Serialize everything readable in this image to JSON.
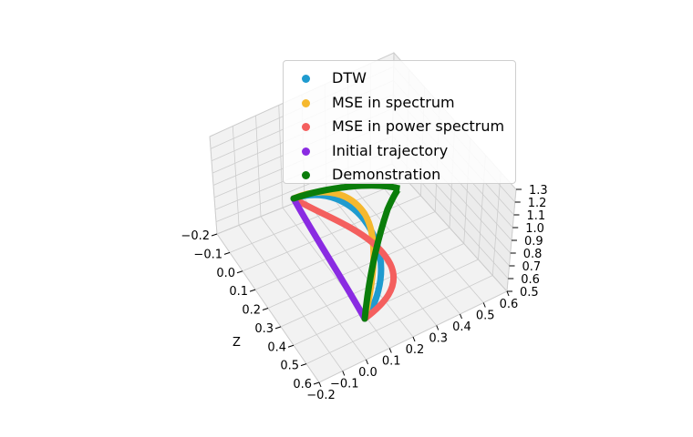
{
  "chart_data": {
    "type": "line3d",
    "title": "",
    "axes": {
      "x": {
        "label": "",
        "ticks": [
          "−0.2",
          "−0.1",
          "0.0",
          "0.1",
          "0.2",
          "0.3",
          "0.4",
          "0.5",
          "0.6"
        ],
        "range": [
          -0.2,
          0.6
        ]
      },
      "z": {
        "label": "Z",
        "ticks": [
          "−0.2",
          "−0.1",
          "0.0",
          "0.1",
          "0.2",
          "0.3",
          "0.4",
          "0.5",
          "0.6"
        ],
        "range": [
          -0.2,
          0.6
        ]
      },
      "y": {
        "label": "",
        "ticks": [
          "0.5",
          "0.6",
          "0.7",
          "0.8",
          "0.9",
          "1.0",
          "1.1",
          "1.2",
          "1.3"
        ],
        "range": [
          0.5,
          1.3
        ]
      }
    },
    "grid": true,
    "legend_position": "upper-center",
    "series": [
      {
        "name": "DTW",
        "color": "#1f9bcf",
        "points": [
          [
            0.12,
            0.16,
            0.86
          ],
          [
            0.02,
            -0.06,
            1.2
          ]
        ]
      },
      {
        "name": "MSE in spectrum",
        "color": "#f5b82e",
        "points": [
          [
            0.12,
            0.16,
            0.86
          ],
          [
            0.02,
            -0.06,
            1.2
          ]
        ]
      },
      {
        "name": "MSE in power spectrum",
        "color": "#f45f5e",
        "points": [
          [
            0.12,
            0.16,
            0.86
          ],
          [
            0.02,
            -0.06,
            1.2
          ]
        ]
      },
      {
        "name": "Initial trajectory",
        "color": "#8a2be2",
        "points": [
          [
            0.12,
            0.16,
            0.86
          ],
          [
            0.02,
            -0.06,
            1.2
          ]
        ]
      },
      {
        "name": "Demonstration",
        "color": "#0a7d0a",
        "points": [
          [
            0.12,
            0.16,
            0.86
          ],
          [
            0.34,
            -0.06,
            1.24
          ]
        ]
      }
    ]
  }
}
